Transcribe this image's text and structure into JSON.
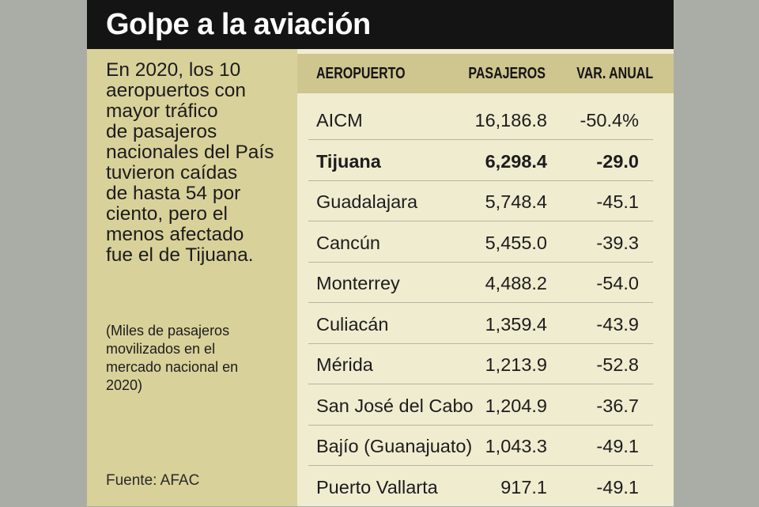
{
  "title": "Golpe a la aviación",
  "description": "En 2020, los 10 aeropuertos con mayor tráfico de pasajeros nacionales del País tuvieron caídas de hasta 54 por ciento, pero el menos afectado fue el de Tijuana.",
  "description_lines": [
    "En 2020, los 10",
    "aeropuertos con",
    "mayor tráfico",
    "de pasajeros",
    "nacionales del País",
    "tuvieron caídas",
    "de hasta 54 por",
    "ciento, pero el",
    "menos afectado",
    "fue el de Tijuana."
  ],
  "note_lines": [
    "(Miles de pasajeros",
    "movilizados en el",
    "mercado nacional en",
    "2020)"
  ],
  "source": "Fuente: AFAC",
  "colors": {
    "title_bar": "#141414",
    "left_panel": "#d9d19a",
    "table_bg": "#f0ecd0",
    "header_bg": "#cfc58f"
  },
  "chart_data": {
    "type": "table",
    "columns": [
      "AEROPUERTO",
      "PASAJEROS",
      "VAR. ANUAL"
    ],
    "highlighted_row": "Tijuana",
    "rows": [
      {
        "airport": "AICM",
        "pasajeros": "16,186.8",
        "var": "-50.4%"
      },
      {
        "airport": "Tijuana",
        "pasajeros": "6,298.4",
        "var": "-29.0"
      },
      {
        "airport": "Guadalajara",
        "pasajeros": "5,748.4",
        "var": "-45.1"
      },
      {
        "airport": "Cancún",
        "pasajeros": "5,455.0",
        "var": "-39.3"
      },
      {
        "airport": "Monterrey",
        "pasajeros": "4,488.2",
        "var": "-54.0"
      },
      {
        "airport": "Culiacán",
        "pasajeros": "1,359.4",
        "var": "-43.9"
      },
      {
        "airport": "Mérida",
        "pasajeros": "1,213.9",
        "var": "-52.8"
      },
      {
        "airport": "San José del Cabo",
        "pasajeros": "1,204.9",
        "var": "-36.7"
      },
      {
        "airport": "Bajío (Guanajuato)",
        "pasajeros": "1,043.3",
        "var": "-49.1"
      },
      {
        "airport": "Puerto Vallarta",
        "pasajeros": "917.1",
        "var": "-49.1"
      }
    ]
  }
}
